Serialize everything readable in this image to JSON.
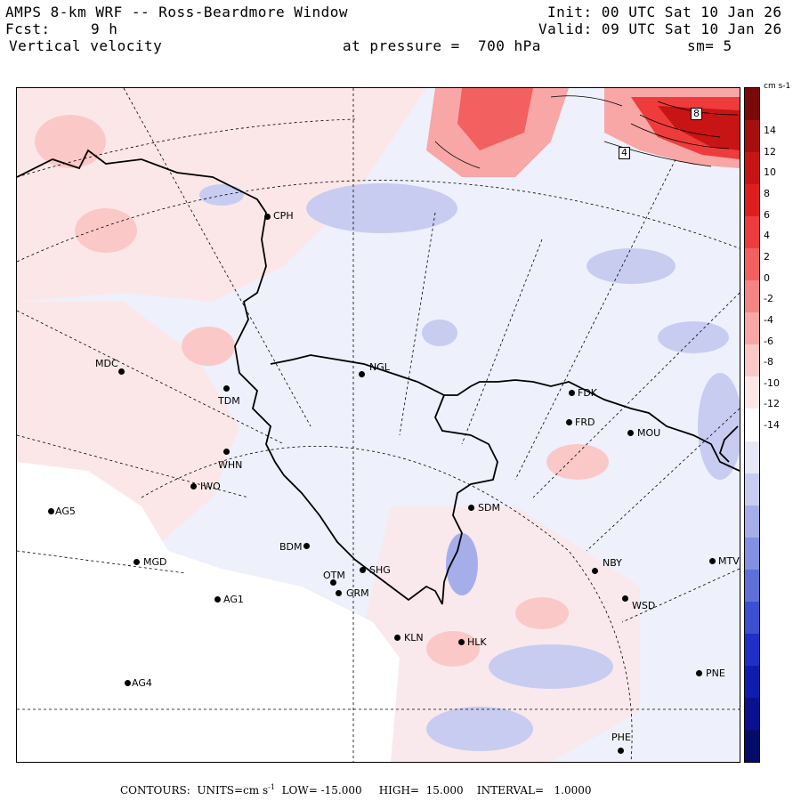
{
  "header": {
    "title": "AMPS 8-km WRF -- Ross-Beardmore Window",
    "init": "Init: 00 UTC Sat 10 Jan 26",
    "fcst_label": "Fcst:",
    "fcst_value": "9 h",
    "valid": "Valid: 09 UTC Sat 10 Jan 26",
    "field": "Vertical velocity",
    "pressure": "at pressure =  700 hPa",
    "smoothing": "sm= 5"
  },
  "colorbar": {
    "units": "cm s-1",
    "labels": [
      "14",
      "12",
      "10",
      "8",
      "6",
      "4",
      "2",
      "0",
      "-2",
      "-4",
      "-6",
      "-8",
      "-10",
      "-12",
      "-14"
    ],
    "colors": [
      "#7a0a0a",
      "#a50f0f",
      "#c81414",
      "#e01e1e",
      "#ee3c3c",
      "#f26060",
      "#f58484",
      "#f8a6a6",
      "#fbc8c8",
      "#fde6e6",
      "#ffffff",
      "#e6e8f8",
      "#c8ccf1",
      "#a6aeea",
      "#8490e2",
      "#6070da",
      "#3c50d2",
      "#1e30c8",
      "#0f1cb0",
      "#0a1090",
      "#060a6a"
    ]
  },
  "stations": [
    {
      "code": "CPH"
    },
    {
      "code": "NGL"
    },
    {
      "code": "MDC"
    },
    {
      "code": "TDM"
    },
    {
      "code": "WHN"
    },
    {
      "code": "IWO"
    },
    {
      "code": "AG5"
    },
    {
      "code": "MGD"
    },
    {
      "code": "BDM"
    },
    {
      "code": "OTM"
    },
    {
      "code": "SHG"
    },
    {
      "code": "GRM"
    },
    {
      "code": "AG1"
    },
    {
      "code": "KLN"
    },
    {
      "code": "HLK"
    },
    {
      "code": "AG4"
    },
    {
      "code": "SDM"
    },
    {
      "code": "FDK"
    },
    {
      "code": "FRD"
    },
    {
      "code": "MOU"
    },
    {
      "code": "NBY"
    },
    {
      "code": "WSD"
    },
    {
      "code": "MTV"
    },
    {
      "code": "PNE"
    },
    {
      "code": "PHE"
    }
  ],
  "contour_labels": [
    "4",
    "8"
  ],
  "footer": {
    "contours": "CONTOURS:",
    "units": "UNITS=cm s",
    "units_sup": "-1",
    "low": "LOW= -15.000",
    "high": "HIGH=  15.000",
    "interval": "INTERVAL=   1.0000"
  }
}
